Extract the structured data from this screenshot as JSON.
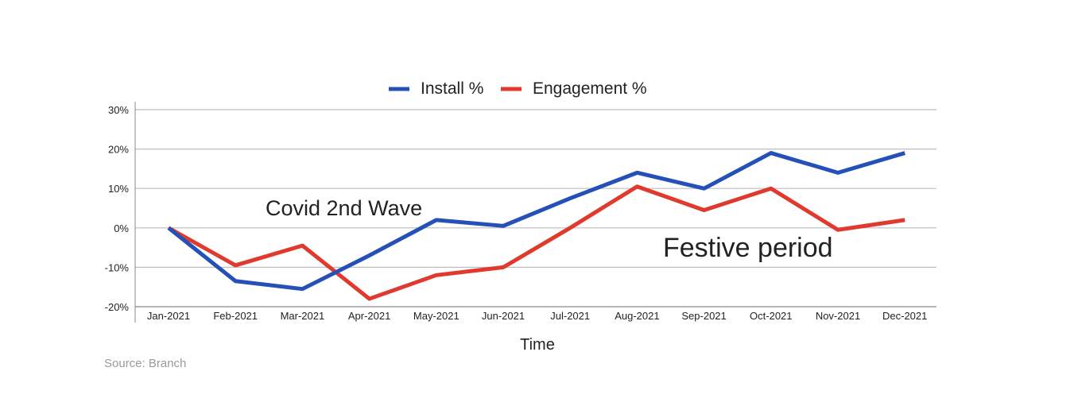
{
  "chart_data": {
    "type": "line",
    "categories": [
      "Jan-2021",
      "Feb-2021",
      "Mar-2021",
      "Apr-2021",
      "May-2021",
      "Jun-2021",
      "Jul-2021",
      "Aug-2021",
      "Sep-2021",
      "Oct-2021",
      "Nov-2021",
      "Dec-2021"
    ],
    "series": [
      {
        "name": "Install %",
        "color": "#2450b8",
        "values": [
          0,
          -13.5,
          -15.5,
          -7,
          2,
          0.5,
          7.5,
          14,
          10,
          19,
          14,
          19
        ]
      },
      {
        "name": "Engagement %",
        "color": "#e03a2e",
        "values": [
          0,
          -9.5,
          -4.5,
          -18,
          -12,
          -10,
          0,
          10.5,
          4.5,
          10,
          -0.5,
          2
        ]
      }
    ],
    "ylim": [
      -20,
      30
    ],
    "yticks": [
      30,
      20,
      10,
      0,
      -10,
      -20
    ],
    "ytick_labels": [
      "30%",
      "20%",
      "10%",
      "0%",
      "-10%",
      "-20%"
    ],
    "xlabel": "Time",
    "ylabel": "",
    "grid": "horizontal",
    "legend": "top-center",
    "annotations": [
      {
        "text": "Covid 2nd Wave"
      },
      {
        "text": "Festive period"
      }
    ],
    "source": "Source: Branch"
  }
}
